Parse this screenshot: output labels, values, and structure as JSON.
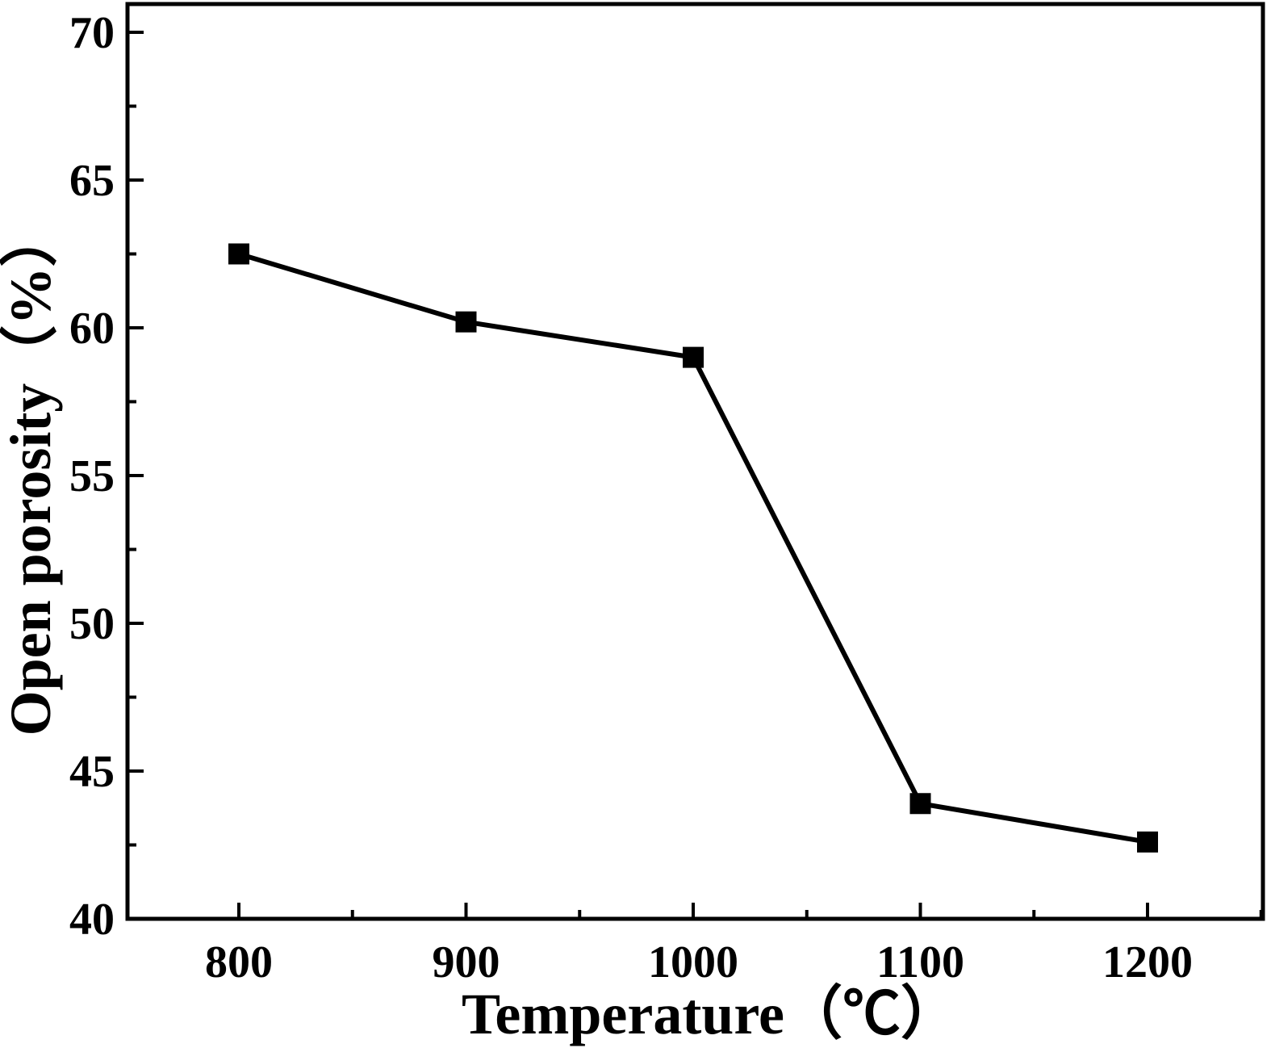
{
  "chart_data": {
    "type": "line",
    "title": "",
    "xlabel": "Temperature（℃）",
    "ylabel": "Open porosity（%）",
    "xlim": [
      750,
      1250
    ],
    "ylim": [
      40,
      70
    ],
    "x_ticks": [
      800,
      900,
      1000,
      1100,
      1200
    ],
    "y_ticks": [
      40,
      45,
      50,
      55,
      60,
      65,
      70
    ],
    "grid": false,
    "legend": "none",
    "series": [
      {
        "marker": "square",
        "color": "#000000",
        "x": [
          800,
          900,
          1000,
          1100,
          1200
        ],
        "y": [
          62.5,
          60.2,
          59.0,
          43.9,
          42.6
        ]
      }
    ]
  }
}
